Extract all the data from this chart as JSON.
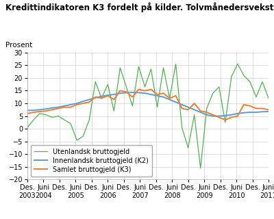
{
  "title": "Kredittindikatoren K3 fordelt på kilder. Tolvmånedersvekst. Prosent",
  "ylabel": "Prosent",
  "ylim": [
    -20,
    30
  ],
  "yticks": [
    -20,
    -15,
    -10,
    -5,
    0,
    5,
    10,
    15,
    20,
    25,
    30
  ],
  "bg_color": "#ffffff",
  "grid_color": "#d0d0d0",
  "line_foreign_color": "#4db34d",
  "line_domestic_color": "#5b9bd5",
  "line_total_color": "#ed7d31",
  "legend_labels": [
    "Utenlandsk bruttogjeld",
    "Innenlandsk bruttogjeld (K2)",
    "Samlet bruttogjeld (K3)"
  ],
  "foreign": [
    0.5,
    3.5,
    6.0,
    5.5,
    4.5,
    5.0,
    3.5,
    2.0,
    -4.5,
    -3.0,
    3.5,
    18.5,
    12.0,
    17.5,
    7.0,
    24.0,
    16.5,
    9.0,
    24.5,
    16.5,
    23.5,
    8.5,
    24.0,
    12.0,
    25.5,
    0.5,
    -7.5,
    5.5,
    -15.5,
    8.0,
    14.0,
    16.5,
    2.5,
    20.5,
    25.5,
    21.0,
    18.5,
    12.5,
    18.5,
    12.0
  ],
  "domestic": [
    7.2,
    7.3,
    7.5,
    7.8,
    8.2,
    8.5,
    9.0,
    9.5,
    10.0,
    10.8,
    11.5,
    12.2,
    12.8,
    13.2,
    13.5,
    14.0,
    14.2,
    14.3,
    14.2,
    14.0,
    13.5,
    13.0,
    12.5,
    11.5,
    10.5,
    9.5,
    8.5,
    7.5,
    6.5,
    5.5,
    5.0,
    5.0,
    5.2,
    5.5,
    6.0,
    6.3,
    6.5,
    6.5,
    6.7,
    6.8
  ],
  "total": [
    6.0,
    6.5,
    6.8,
    7.0,
    7.5,
    8.0,
    8.5,
    8.5,
    9.5,
    10.0,
    10.5,
    12.5,
    12.0,
    13.0,
    11.5,
    15.0,
    14.5,
    12.5,
    15.5,
    15.0,
    15.5,
    13.5,
    14.0,
    12.0,
    13.0,
    8.0,
    7.5,
    10.0,
    7.0,
    6.5,
    5.5,
    4.5,
    3.5,
    4.5,
    5.0,
    9.5,
    9.0,
    8.0,
    8.0,
    7.5
  ],
  "n_points": 40,
  "title_fontsize": 8.5,
  "tick_fontsize": 7,
  "legend_fontsize": 7
}
